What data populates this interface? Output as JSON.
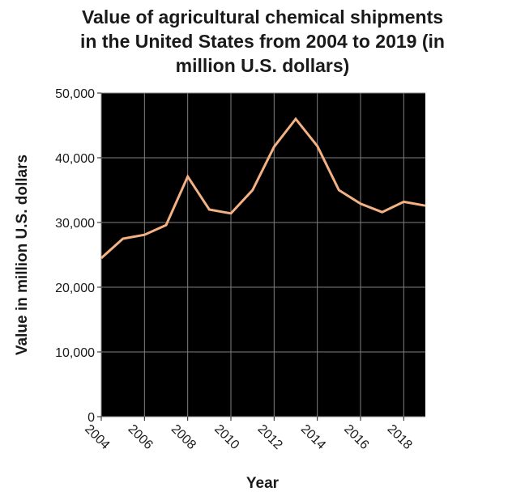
{
  "chart_data": {
    "type": "line",
    "title": "Value of agricultural chemical shipments\nin the United States from 2004 to 2019 (in\nmillion U.S. dollars)",
    "xlabel": "Year",
    "ylabel": "Value in million U.S. dollars",
    "xlim": [
      2004,
      2019
    ],
    "ylim": [
      0,
      50000
    ],
    "x_ticks": [
      2004,
      2006,
      2008,
      2010,
      2012,
      2014,
      2016,
      2018
    ],
    "x_tick_labels": [
      "2004",
      "2006",
      "2008",
      "2010",
      "2012",
      "2014",
      "2016",
      "2018"
    ],
    "y_ticks": [
      0,
      10000,
      20000,
      30000,
      40000,
      50000
    ],
    "y_tick_labels": [
      "0",
      "10,000",
      "20,000",
      "30,000",
      "40,000",
      "50,000"
    ],
    "grid": true,
    "background": "#000000",
    "grid_color": "#808080",
    "series": [
      {
        "color": "#f4b183",
        "x": [
          2004,
          2005,
          2006,
          2007,
          2008,
          2009,
          2010,
          2011,
          2012,
          2013,
          2014,
          2015,
          2016,
          2017,
          2018,
          2019
        ],
        "values": [
          24500,
          27500,
          28100,
          29600,
          37100,
          32000,
          31400,
          35000,
          41700,
          46000,
          41800,
          35000,
          32900,
          31600,
          33200,
          32600
        ]
      }
    ]
  }
}
